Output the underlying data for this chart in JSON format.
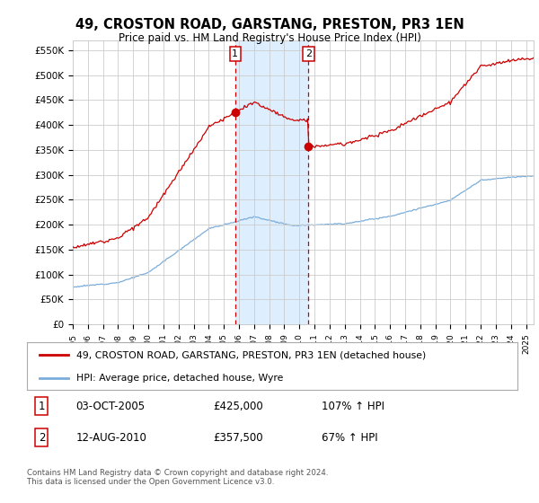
{
  "title": "49, CROSTON ROAD, GARSTANG, PRESTON, PR3 1EN",
  "subtitle": "Price paid vs. HM Land Registry's House Price Index (HPI)",
  "ylim": [
    0,
    570000
  ],
  "yticks": [
    0,
    50000,
    100000,
    150000,
    200000,
    250000,
    300000,
    350000,
    400000,
    450000,
    500000,
    550000
  ],
  "ytick_labels": [
    "£0",
    "£50K",
    "£100K",
    "£150K",
    "£200K",
    "£250K",
    "£300K",
    "£350K",
    "£400K",
    "£450K",
    "£500K",
    "£550K"
  ],
  "t1_year": 2005.75,
  "t2_year": 2010.6,
  "t1_price": 425000,
  "t2_price": 357500,
  "legend_red": "49, CROSTON ROAD, GARSTANG, PRESTON, PR3 1EN (detached house)",
  "legend_blue": "HPI: Average price, detached house, Wyre",
  "footnote": "Contains HM Land Registry data © Crown copyright and database right 2024.\nThis data is licensed under the Open Government Licence v3.0.",
  "red_color": "#cc0000",
  "blue_color": "#7aaddb",
  "shading_color": "#ddeeff",
  "grid_color": "#cccccc",
  "bg": "#ffffff",
  "xmin": 1995,
  "xmax": 2025.5
}
